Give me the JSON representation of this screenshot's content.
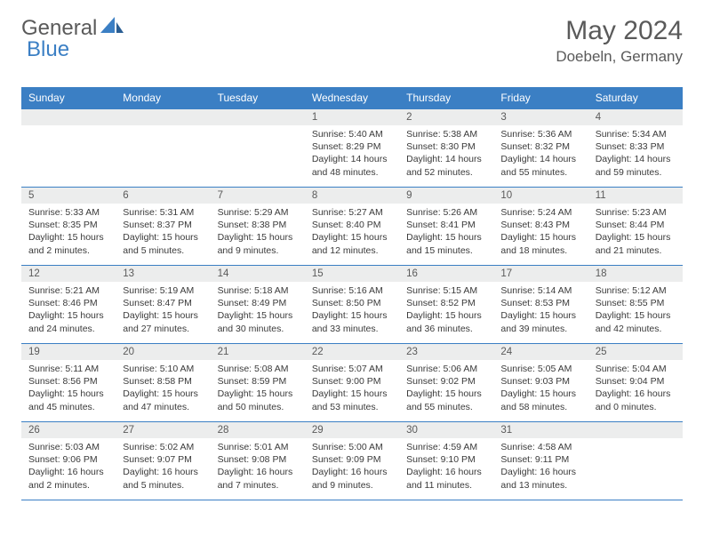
{
  "logo": {
    "text_a": "General",
    "text_b": "Blue"
  },
  "title": "May 2024",
  "location": "Doebeln, Germany",
  "colors": {
    "header_bg": "#3b7fc4",
    "header_fg": "#ffffff",
    "daynum_bg": "#eceded",
    "text": "#5a5a5a",
    "border": "#3b7fc4"
  },
  "day_headers": [
    "Sunday",
    "Monday",
    "Tuesday",
    "Wednesday",
    "Thursday",
    "Friday",
    "Saturday"
  ],
  "weeks": [
    [
      null,
      null,
      null,
      {
        "n": "1",
        "sr": "5:40 AM",
        "ss": "8:29 PM",
        "dl": "14 hours and 48 minutes."
      },
      {
        "n": "2",
        "sr": "5:38 AM",
        "ss": "8:30 PM",
        "dl": "14 hours and 52 minutes."
      },
      {
        "n": "3",
        "sr": "5:36 AM",
        "ss": "8:32 PM",
        "dl": "14 hours and 55 minutes."
      },
      {
        "n": "4",
        "sr": "5:34 AM",
        "ss": "8:33 PM",
        "dl": "14 hours and 59 minutes."
      }
    ],
    [
      {
        "n": "5",
        "sr": "5:33 AM",
        "ss": "8:35 PM",
        "dl": "15 hours and 2 minutes."
      },
      {
        "n": "6",
        "sr": "5:31 AM",
        "ss": "8:37 PM",
        "dl": "15 hours and 5 minutes."
      },
      {
        "n": "7",
        "sr": "5:29 AM",
        "ss": "8:38 PM",
        "dl": "15 hours and 9 minutes."
      },
      {
        "n": "8",
        "sr": "5:27 AM",
        "ss": "8:40 PM",
        "dl": "15 hours and 12 minutes."
      },
      {
        "n": "9",
        "sr": "5:26 AM",
        "ss": "8:41 PM",
        "dl": "15 hours and 15 minutes."
      },
      {
        "n": "10",
        "sr": "5:24 AM",
        "ss": "8:43 PM",
        "dl": "15 hours and 18 minutes."
      },
      {
        "n": "11",
        "sr": "5:23 AM",
        "ss": "8:44 PM",
        "dl": "15 hours and 21 minutes."
      }
    ],
    [
      {
        "n": "12",
        "sr": "5:21 AM",
        "ss": "8:46 PM",
        "dl": "15 hours and 24 minutes."
      },
      {
        "n": "13",
        "sr": "5:19 AM",
        "ss": "8:47 PM",
        "dl": "15 hours and 27 minutes."
      },
      {
        "n": "14",
        "sr": "5:18 AM",
        "ss": "8:49 PM",
        "dl": "15 hours and 30 minutes."
      },
      {
        "n": "15",
        "sr": "5:16 AM",
        "ss": "8:50 PM",
        "dl": "15 hours and 33 minutes."
      },
      {
        "n": "16",
        "sr": "5:15 AM",
        "ss": "8:52 PM",
        "dl": "15 hours and 36 minutes."
      },
      {
        "n": "17",
        "sr": "5:14 AM",
        "ss": "8:53 PM",
        "dl": "15 hours and 39 minutes."
      },
      {
        "n": "18",
        "sr": "5:12 AM",
        "ss": "8:55 PM",
        "dl": "15 hours and 42 minutes."
      }
    ],
    [
      {
        "n": "19",
        "sr": "5:11 AM",
        "ss": "8:56 PM",
        "dl": "15 hours and 45 minutes."
      },
      {
        "n": "20",
        "sr": "5:10 AM",
        "ss": "8:58 PM",
        "dl": "15 hours and 47 minutes."
      },
      {
        "n": "21",
        "sr": "5:08 AM",
        "ss": "8:59 PM",
        "dl": "15 hours and 50 minutes."
      },
      {
        "n": "22",
        "sr": "5:07 AM",
        "ss": "9:00 PM",
        "dl": "15 hours and 53 minutes."
      },
      {
        "n": "23",
        "sr": "5:06 AM",
        "ss": "9:02 PM",
        "dl": "15 hours and 55 minutes."
      },
      {
        "n": "24",
        "sr": "5:05 AM",
        "ss": "9:03 PM",
        "dl": "15 hours and 58 minutes."
      },
      {
        "n": "25",
        "sr": "5:04 AM",
        "ss": "9:04 PM",
        "dl": "16 hours and 0 minutes."
      }
    ],
    [
      {
        "n": "26",
        "sr": "5:03 AM",
        "ss": "9:06 PM",
        "dl": "16 hours and 2 minutes."
      },
      {
        "n": "27",
        "sr": "5:02 AM",
        "ss": "9:07 PM",
        "dl": "16 hours and 5 minutes."
      },
      {
        "n": "28",
        "sr": "5:01 AM",
        "ss": "9:08 PM",
        "dl": "16 hours and 7 minutes."
      },
      {
        "n": "29",
        "sr": "5:00 AM",
        "ss": "9:09 PM",
        "dl": "16 hours and 9 minutes."
      },
      {
        "n": "30",
        "sr": "4:59 AM",
        "ss": "9:10 PM",
        "dl": "16 hours and 11 minutes."
      },
      {
        "n": "31",
        "sr": "4:58 AM",
        "ss": "9:11 PM",
        "dl": "16 hours and 13 minutes."
      },
      null
    ]
  ],
  "labels": {
    "sunrise": "Sunrise:",
    "sunset": "Sunset:",
    "daylight": "Daylight:"
  }
}
